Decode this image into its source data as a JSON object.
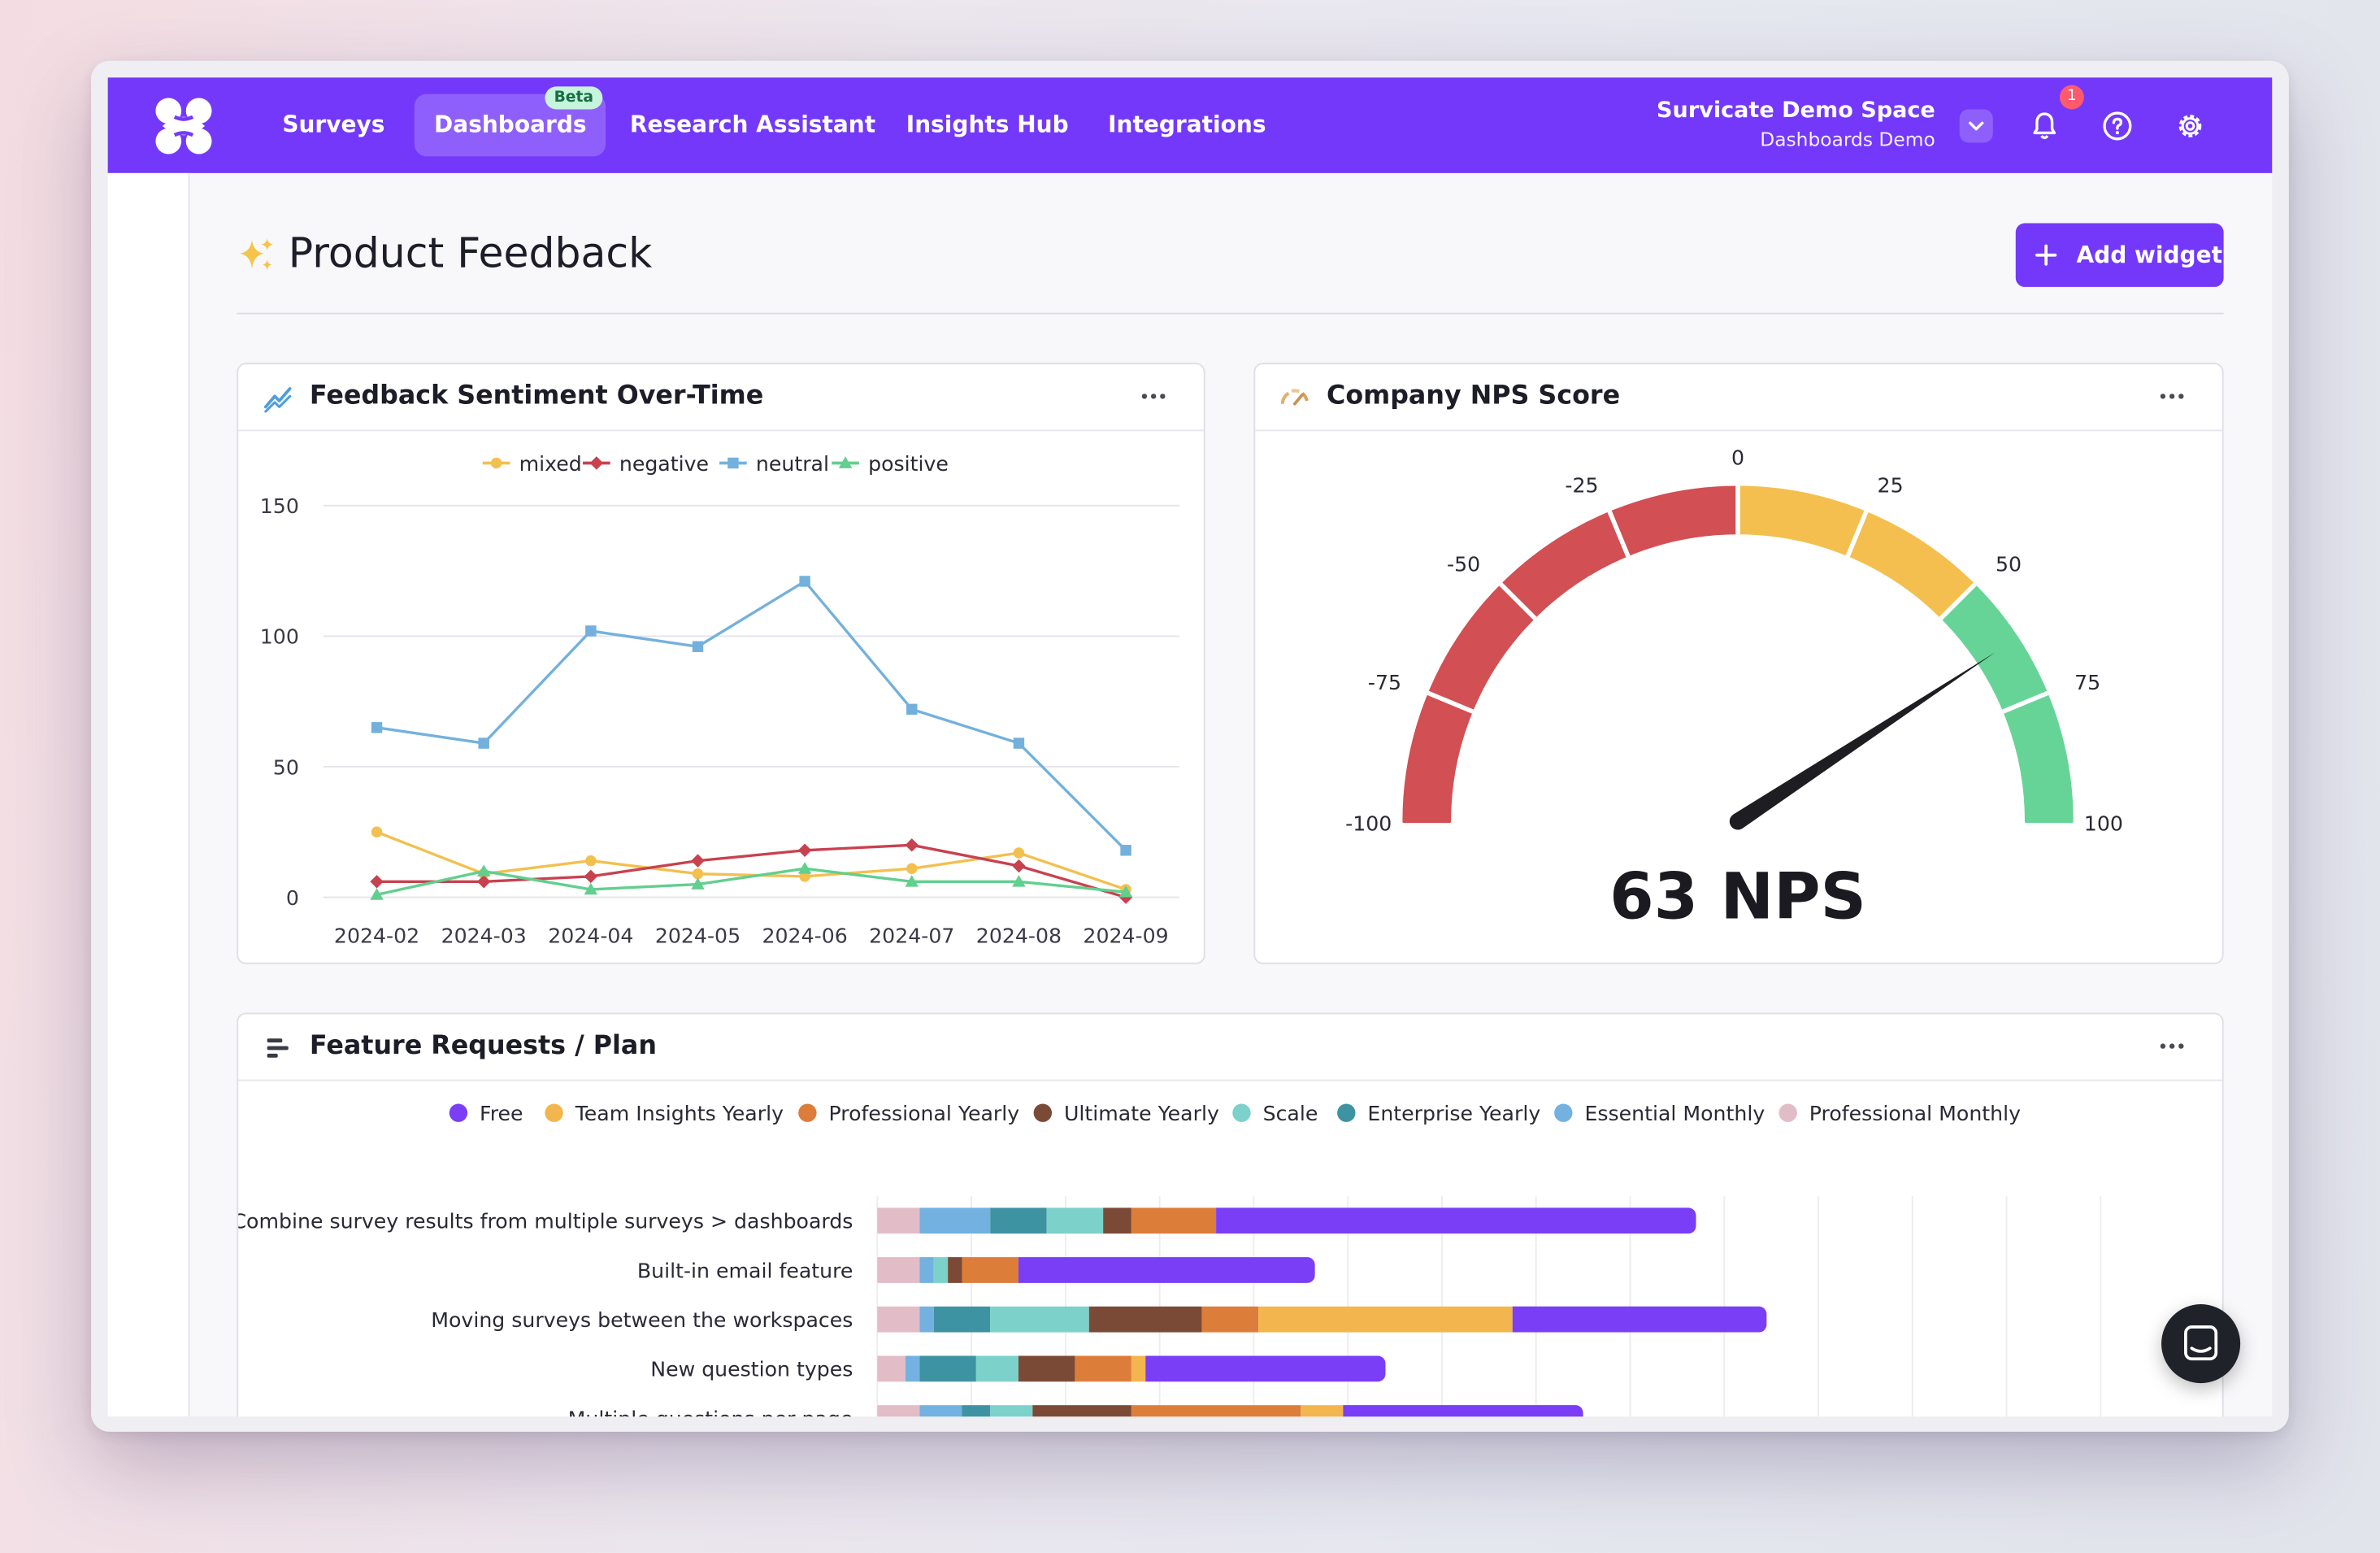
{
  "topbar": {
    "nav": [
      {
        "label": "Surveys"
      },
      {
        "label": "Dashboards",
        "badge": "Beta",
        "active": true
      },
      {
        "label": "Research Assistant"
      },
      {
        "label": "Insights Hub"
      },
      {
        "label": "Integrations"
      }
    ],
    "workspace_name": "Survicate Demo Space",
    "workspace_sub": "Dashboards Demo",
    "notification_count": "1",
    "icons": [
      "logo-icon",
      "chevron-down-icon",
      "bell-icon",
      "help-icon",
      "gear-icon"
    ]
  },
  "page": {
    "title": "Product Feedback",
    "title_icon": "sparkles-icon",
    "add_widget_label": "Add widget"
  },
  "sidebar": {
    "collapse_icon": "collapse-right-icon"
  },
  "colors": {
    "accent": "#7438fb",
    "mixed": "#f2c04e",
    "negative": "#c8414f",
    "neutral": "#73b1dc",
    "positive": "#62cf8e"
  },
  "widgets": {
    "sentiment": {
      "title": "Feedback Sentiment Over-Time",
      "icon": "trend-line-icon"
    },
    "nps": {
      "title": "Company NPS Score",
      "icon": "gauge-icon",
      "score_text": "63 NPS"
    },
    "features": {
      "title": "Feature Requests / Plan",
      "icon": "bar-chart-icon"
    }
  },
  "chart_data": [
    {
      "type": "line",
      "x": [
        "2024-02",
        "2024-03",
        "2024-04",
        "2024-05",
        "2024-06",
        "2024-07",
        "2024-08",
        "2024-09"
      ],
      "ylim": [
        0,
        150
      ],
      "yticks": [
        0,
        50,
        100,
        150
      ],
      "grid": true,
      "legend": "top-center",
      "series": [
        {
          "name": "mixed",
          "color": "#f2c04e",
          "marker": "circle",
          "values": [
            25,
            9,
            14,
            9,
            8,
            11,
            17,
            3
          ]
        },
        {
          "name": "negative",
          "color": "#c8414f",
          "marker": "diamond",
          "values": [
            6,
            6,
            8,
            14,
            18,
            20,
            12,
            0
          ]
        },
        {
          "name": "neutral",
          "color": "#73b1dc",
          "marker": "square",
          "values": [
            65,
            59,
            102,
            96,
            121,
            72,
            59,
            18
          ]
        },
        {
          "name": "positive",
          "color": "#62cf8e",
          "marker": "triangle",
          "values": [
            1,
            10,
            3,
            5,
            11,
            6,
            6,
            2
          ]
        }
      ]
    },
    {
      "type": "gauge",
      "min": -100,
      "max": 100,
      "value": 63,
      "ticks": [
        -100,
        -75,
        -50,
        -25,
        0,
        25,
        50,
        75,
        100
      ],
      "bands": [
        {
          "from": -100,
          "to": 0,
          "color": "#d24f53"
        },
        {
          "from": 0,
          "to": 50,
          "color": "#f4bf4e"
        },
        {
          "from": 50,
          "to": 100,
          "color": "#67d497"
        }
      ]
    },
    {
      "type": "bar",
      "orientation": "horizontal",
      "stacked": true,
      "legend": "top-center",
      "categories": [
        "Combine survey results from multiple surveys > dashboards",
        "Built-in email feature",
        "Moving surveys between the workspaces",
        "New question types",
        "Multiple questions per page"
      ],
      "series": [
        {
          "name": "Professional Monthly",
          "color": "#e2bcc6",
          "values": [
            3,
            3,
            3,
            2,
            3
          ]
        },
        {
          "name": "Essential Monthly",
          "color": "#73b1e1",
          "values": [
            5,
            1,
            1,
            1,
            3
          ]
        },
        {
          "name": "Enterprise Yearly",
          "color": "#3e93a3",
          "values": [
            4,
            0,
            4,
            4,
            2
          ]
        },
        {
          "name": "Scale",
          "color": "#7dd1cb",
          "values": [
            4,
            1,
            7,
            3,
            3
          ]
        },
        {
          "name": "Ultimate Yearly",
          "color": "#7b4a36",
          "values": [
            2,
            1,
            8,
            4,
            7
          ]
        },
        {
          "name": "Professional Yearly",
          "color": "#dd7d3a",
          "values": [
            6,
            4,
            4,
            4,
            12
          ]
        },
        {
          "name": "Team Insights Yearly",
          "color": "#f3b54e",
          "values": [
            0,
            0,
            18,
            1,
            3
          ]
        },
        {
          "name": "Free",
          "color": "#7a3ef6",
          "values": [
            34,
            21,
            18,
            17,
            17
          ]
        }
      ],
      "legend_order": [
        "Free",
        "Team Insights Yearly",
        "Professional Yearly",
        "Ultimate Yearly",
        "Scale",
        "Enterprise Yearly",
        "Essential Monthly",
        "Professional Monthly"
      ]
    }
  ]
}
